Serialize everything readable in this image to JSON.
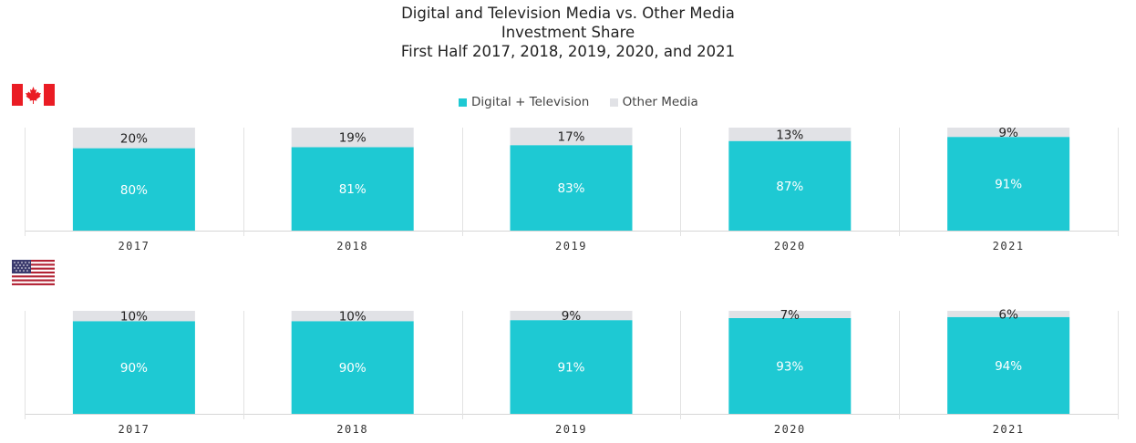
{
  "title_lines": [
    "Digital and Television Media vs. Other Media",
    "Investment Share",
    "First Half 2017, 2018, 2019, 2020, and 2021"
  ],
  "legend": [
    {
      "label": "Digital + Television",
      "color": "#1ec9d3"
    },
    {
      "label": "Other Media",
      "color": "#e1e2e6"
    }
  ],
  "flags": {
    "top": "canada-flag-icon",
    "bottom": "usa-flag-icon"
  },
  "chart_data": [
    {
      "type": "bar",
      "stacked": true,
      "categories": [
        "2017",
        "2018",
        "2019",
        "2020",
        "2021"
      ],
      "ylim": [
        0,
        100
      ],
      "series": [
        {
          "name": "Digital + Television",
          "color": "#1ec9d3",
          "values": [
            80,
            81,
            83,
            87,
            91
          ],
          "labels": [
            "80%",
            "81%",
            "83%",
            "87%",
            "91%"
          ]
        },
        {
          "name": "Other Media",
          "color": "#e1e2e6",
          "values": [
            20,
            19,
            17,
            13,
            9
          ],
          "labels": [
            "20%",
            "19%",
            "17%",
            "13%",
            "9%"
          ]
        }
      ]
    },
    {
      "type": "bar",
      "stacked": true,
      "categories": [
        "2017",
        "2018",
        "2019",
        "2020",
        "2021"
      ],
      "ylim": [
        0,
        100
      ],
      "series": [
        {
          "name": "Digital + Television",
          "color": "#1ec9d3",
          "values": [
            90,
            90,
            91,
            93,
            94
          ],
          "labels": [
            "90%",
            "90%",
            "91%",
            "93%",
            "94%"
          ]
        },
        {
          "name": "Other Media",
          "color": "#e1e2e6",
          "values": [
            10,
            10,
            9,
            7,
            6
          ],
          "labels": [
            "10%",
            "10%",
            "9%",
            "7%",
            "6%"
          ]
        }
      ]
    }
  ]
}
